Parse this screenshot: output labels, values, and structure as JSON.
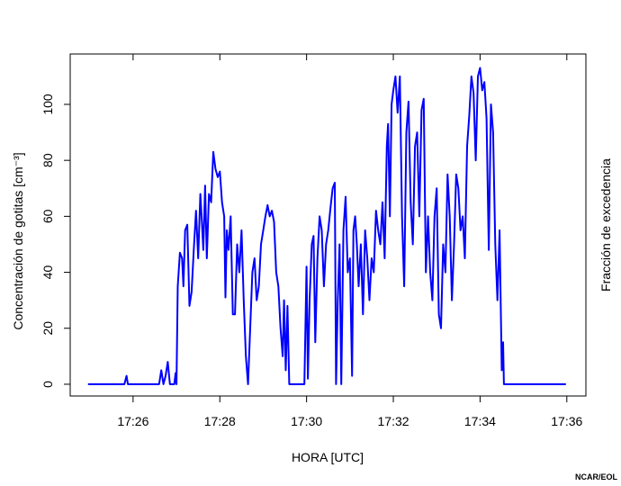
{
  "chart_data": {
    "type": "line",
    "xlabel": "HORA [UTC]",
    "ylabel": "Concentración de gotitas [cm⁻³]",
    "y2label": "Fracción de excedencia",
    "credit": "NCAR/EOL",
    "xlim": [
      24.55,
      36.44
    ],
    "ylim": [
      -4.2,
      118
    ],
    "xticks": [
      {
        "value": 26,
        "label": "17:26"
      },
      {
        "value": 28,
        "label": "17:28"
      },
      {
        "value": 30,
        "label": "17:30"
      },
      {
        "value": 32,
        "label": "17:32"
      },
      {
        "value": 34,
        "label": "17:34"
      },
      {
        "value": 36,
        "label": "17:36"
      }
    ],
    "yticks": [
      0,
      20,
      40,
      60,
      80,
      100
    ],
    "series": [
      {
        "color": "#0000ff",
        "x": [
          24.96,
          25.8,
          25.85,
          25.88,
          26.6,
          26.65,
          26.7,
          26.75,
          26.8,
          26.85,
          26.95,
          26.98,
          27.0,
          27.03,
          27.08,
          27.13,
          27.16,
          27.2,
          27.25,
          27.3,
          27.35,
          27.4,
          27.45,
          27.5,
          27.55,
          27.58,
          27.62,
          27.66,
          27.7,
          27.75,
          27.8,
          27.85,
          27.9,
          27.95,
          28.0,
          28.05,
          28.1,
          28.13,
          28.16,
          28.2,
          28.25,
          28.3,
          28.35,
          28.4,
          28.45,
          28.5,
          28.55,
          28.6,
          28.65,
          28.7,
          28.75,
          28.8,
          28.85,
          28.9,
          28.95,
          29.0,
          29.05,
          29.1,
          29.15,
          29.2,
          29.25,
          29.3,
          29.35,
          29.4,
          29.45,
          29.48,
          29.52,
          29.56,
          29.6,
          29.65,
          29.95,
          30.0,
          30.03,
          30.07,
          30.12,
          30.16,
          30.2,
          30.25,
          30.3,
          30.35,
          30.4,
          30.45,
          30.5,
          30.55,
          30.6,
          30.65,
          30.68,
          30.72,
          30.76,
          30.8,
          30.85,
          30.9,
          30.95,
          31.0,
          31.05,
          31.08,
          31.12,
          31.16,
          31.2,
          31.25,
          31.3,
          31.35,
          31.4,
          31.45,
          31.5,
          31.55,
          31.6,
          31.65,
          31.7,
          31.75,
          31.8,
          31.85,
          31.88,
          31.92,
          31.96,
          32.0,
          32.05,
          32.1,
          32.15,
          32.2,
          32.25,
          32.3,
          32.35,
          32.4,
          32.45,
          32.5,
          32.55,
          32.6,
          32.65,
          32.7,
          32.75,
          32.8,
          32.85,
          32.9,
          32.95,
          33.0,
          33.05,
          33.1,
          33.15,
          33.2,
          33.25,
          33.3,
          33.35,
          33.4,
          33.45,
          33.5,
          33.55,
          33.6,
          33.65,
          33.7,
          33.75,
          33.8,
          33.85,
          33.9,
          33.95,
          34.0,
          34.05,
          34.1,
          34.15,
          34.2,
          34.25,
          34.3,
          34.35,
          34.4,
          34.45,
          34.5,
          34.53,
          34.55,
          35.98
        ],
        "values": [
          0,
          0,
          3,
          0,
          0,
          5,
          0,
          3,
          8,
          0,
          0,
          4,
          0,
          35,
          47,
          45,
          35,
          55,
          57,
          28,
          33,
          48,
          62,
          45,
          68,
          60,
          48,
          71,
          45,
          68,
          65,
          83,
          77,
          74,
          76,
          65,
          60,
          31,
          55,
          48,
          60,
          25,
          25,
          50,
          40,
          55,
          30,
          10,
          0,
          20,
          40,
          45,
          30,
          35,
          50,
          55,
          60,
          64,
          60,
          62,
          58,
          40,
          35,
          20,
          10,
          30,
          5,
          28,
          0,
          0,
          0,
          42,
          2,
          30,
          50,
          53,
          15,
          45,
          60,
          55,
          35,
          50,
          55,
          63,
          70,
          72,
          0,
          30,
          50,
          0,
          55,
          67,
          40,
          45,
          3,
          55,
          60,
          50,
          35,
          50,
          25,
          55,
          45,
          30,
          45,
          40,
          62,
          55,
          50,
          65,
          45,
          85,
          93,
          60,
          100,
          105,
          110,
          97,
          110,
          60,
          35,
          90,
          101,
          65,
          50,
          85,
          90,
          60,
          98,
          102,
          40,
          60,
          40,
          30,
          60,
          70,
          25,
          20,
          50,
          40,
          75,
          60,
          30,
          50,
          75,
          70,
          55,
          60,
          45,
          85,
          96,
          110,
          104,
          80,
          110,
          113,
          105,
          108,
          95,
          48,
          100,
          90,
          50,
          30,
          55,
          5,
          15,
          0,
          0
        ]
      }
    ]
  }
}
